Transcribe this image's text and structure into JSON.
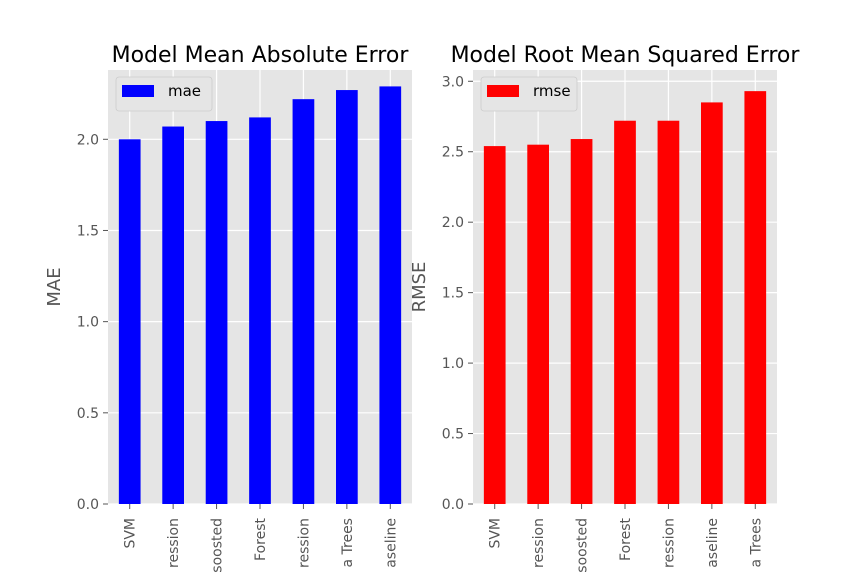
{
  "colors": {
    "panel_bg": "#E5E5E5",
    "grid": "#FFFFFF",
    "tick_text": "#555555"
  },
  "chart_data": [
    {
      "type": "bar",
      "title": "Model Mean Absolute Error",
      "ylabel": "MAE",
      "xlabel": "",
      "categories": [
        "SVM",
        "ression",
        "soosted",
        "Forest",
        "ression",
        "a Trees",
        "aseline"
      ],
      "series": [
        {
          "name": "mae",
          "color": "#0000FF",
          "values": [
            2.0,
            2.07,
            2.1,
            2.12,
            2.22,
            2.27,
            2.29
          ]
        }
      ],
      "ylim": [
        0,
        2.38
      ],
      "yticks": [
        0.0,
        0.5,
        1.0,
        1.5,
        2.0
      ],
      "ytick_labels": [
        "0.0",
        "0.5",
        "1.0",
        "1.5",
        "2.0"
      ],
      "grid": true,
      "legend": "top-left"
    },
    {
      "type": "bar",
      "title": "Model Root Mean Squared Error",
      "ylabel": "RMSE",
      "xlabel": "",
      "categories": [
        "SVM",
        "ression",
        "soosted",
        "Forest",
        "ression",
        "aseline",
        "a Trees"
      ],
      "series": [
        {
          "name": "rmse",
          "color": "#FF0000",
          "values": [
            2.54,
            2.55,
            2.59,
            2.72,
            2.72,
            2.85,
            2.93
          ]
        }
      ],
      "ylim": [
        0,
        3.08
      ],
      "yticks": [
        0.0,
        0.5,
        1.0,
        1.5,
        2.0,
        2.5,
        3.0
      ],
      "ytick_labels": [
        "0.0",
        "0.5",
        "1.0",
        "1.5",
        "2.0",
        "2.5",
        "3.0"
      ],
      "grid": true,
      "legend": "top-left"
    }
  ]
}
